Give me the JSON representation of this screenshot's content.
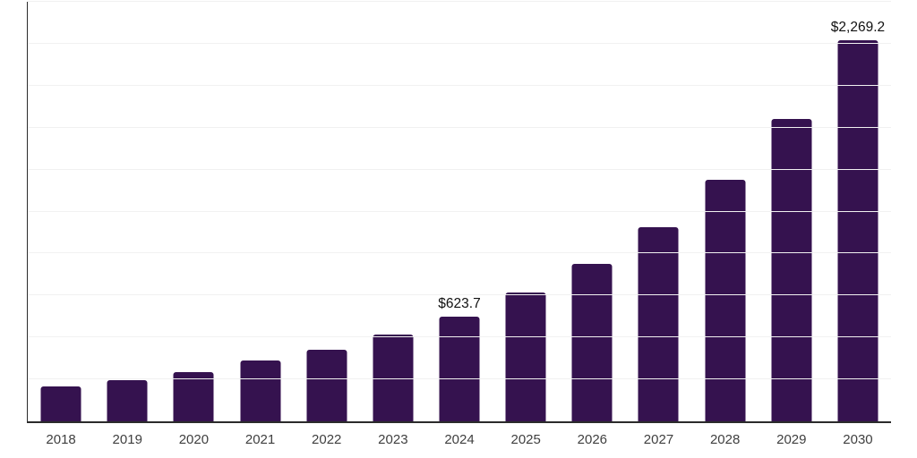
{
  "chart_data": {
    "type": "bar",
    "categories": [
      "2018",
      "2019",
      "2020",
      "2021",
      "2022",
      "2023",
      "2024",
      "2025",
      "2026",
      "2027",
      "2028",
      "2029",
      "2030"
    ],
    "values": [
      210,
      245,
      295,
      360,
      425,
      515,
      623.7,
      770,
      940,
      1155,
      1440,
      1800,
      2269.2
    ],
    "value_labels": [
      "",
      "",
      "",
      "",
      "",
      "",
      "$623.7",
      "",
      "",
      "",
      "",
      "",
      "$2,269.2"
    ],
    "labeled_points": [
      {
        "category": "2024",
        "label": "$623.7"
      },
      {
        "category": "2030",
        "label": "$2,269.2"
      }
    ],
    "ylim": [
      0,
      2500
    ],
    "y_gridline_step": 250,
    "grid": "horizontal",
    "y_tick_labels_visible": false,
    "legend": "none",
    "colors": {
      "bar": "#35124f",
      "axis": "#2b2b2b",
      "gridline": "#f1f1f1",
      "value_label": "#111111",
      "x_tick_label": "#3f3f3f",
      "background": "#ffffff"
    }
  }
}
